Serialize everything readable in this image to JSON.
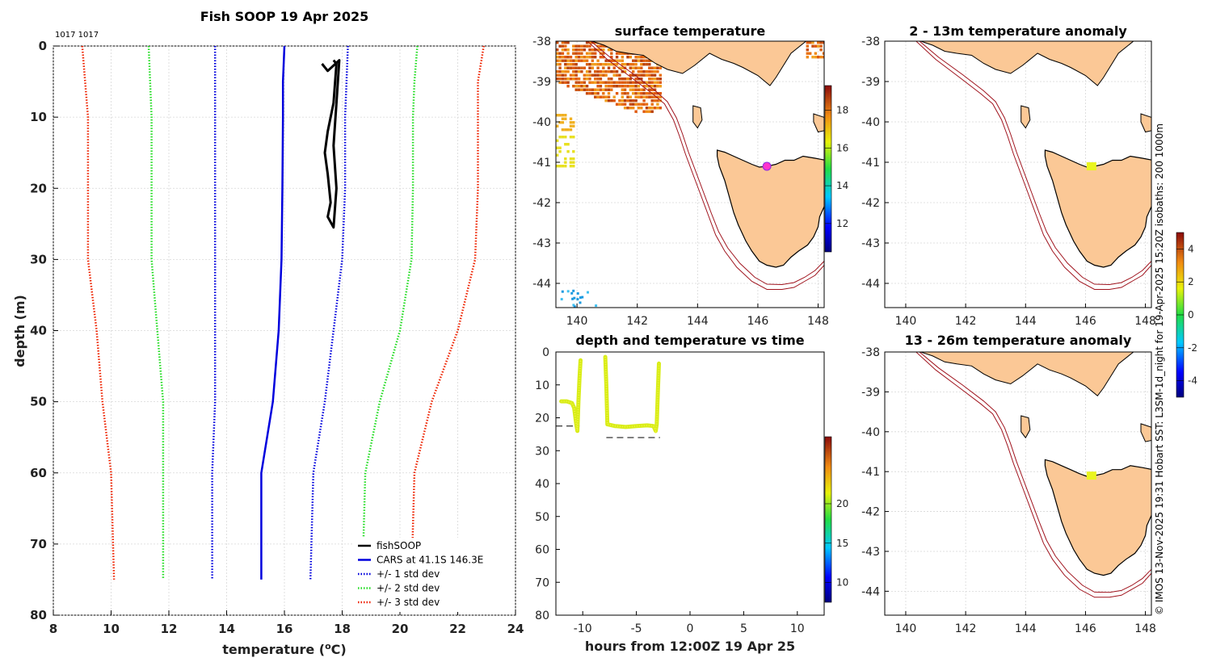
{
  "figure_title": "Fish SOOP 19 Apr 2025",
  "cast_ids": "1017 1017",
  "side_note": "© IMOS 13-Nov-2025 19:31 Hobart SST: L3SM-1d_night for 19-Apr-2025 15:20Z isobaths: 200  1000m",
  "colors": {
    "fishsoop": "#000000",
    "cars": "#0000dd",
    "std1": "#0000dd",
    "std2": "#22dd22",
    "std3": "#ee2200",
    "land": "#fbc896",
    "coast": "#000000",
    "isobath": "#a0141e",
    "marker_pink": "#ff33cc",
    "marker_yellow": "#eaf51f"
  },
  "chart_data": [
    {
      "id": "profile",
      "type": "line",
      "title": "Fish SOOP 19 Apr 2025",
      "xlabel": "temperature (",
      "xlabel_sup": "o",
      "xlabel_end": "C)",
      "ylabel": "depth (m)",
      "xlim": [
        8,
        24
      ],
      "ylim": [
        80,
        0
      ],
      "xticks": [
        8,
        10,
        12,
        14,
        16,
        18,
        20,
        22,
        24
      ],
      "yticks": [
        0,
        10,
        20,
        30,
        40,
        50,
        60,
        70,
        80
      ],
      "grid": true,
      "legend_position": "bottom-right",
      "series": [
        {
          "name": "fishSOOP",
          "style": "solid",
          "color": "#000000",
          "points": [
            [
              17.7,
              2.0
            ],
            [
              17.8,
              2.5
            ],
            [
              17.7,
              8.0
            ],
            [
              17.5,
              12.0
            ],
            [
              17.4,
              15.0
            ],
            [
              17.5,
              18.0
            ],
            [
              17.6,
              22.0
            ],
            [
              17.5,
              24.0
            ],
            [
              17.7,
              25.5
            ],
            [
              17.8,
              20.0
            ],
            [
              17.7,
              14.0
            ],
            [
              17.8,
              8.0
            ],
            [
              17.9,
              2.0
            ],
            [
              17.5,
              3.5
            ],
            [
              17.3,
              2.5
            ]
          ]
        },
        {
          "name": "CARS at 41.1S 146.3E",
          "style": "solid",
          "color": "#0000dd",
          "points": [
            [
              16.0,
              0
            ],
            [
              15.95,
              5
            ],
            [
              15.95,
              10
            ],
            [
              15.93,
              20
            ],
            [
              15.9,
              30
            ],
            [
              15.8,
              40
            ],
            [
              15.6,
              50
            ],
            [
              15.2,
              60
            ],
            [
              15.2,
              70
            ],
            [
              15.2,
              75
            ]
          ]
        },
        {
          "name": "+/- 1 std dev",
          "style": "dotted",
          "color": "#0000dd",
          "points": [
            [
              13.6,
              0
            ],
            [
              13.6,
              10
            ],
            [
              13.6,
              20
            ],
            [
              13.6,
              30
            ],
            [
              13.6,
              40
            ],
            [
              13.6,
              50
            ],
            [
              13.5,
              60
            ],
            [
              13.5,
              75
            ]
          ]
        },
        {
          "name": "+/- 1 std dev upper",
          "legend": false,
          "style": "dotted",
          "color": "#0000dd",
          "points": [
            [
              18.2,
              0
            ],
            [
              18.1,
              10
            ],
            [
              18.1,
              20
            ],
            [
              18.0,
              30
            ],
            [
              17.7,
              40
            ],
            [
              17.4,
              50
            ],
            [
              17.0,
              60
            ],
            [
              16.9,
              75
            ]
          ]
        },
        {
          "name": "+/- 2 std dev",
          "style": "dotted",
          "color": "#22dd22",
          "points": [
            [
              11.3,
              0
            ],
            [
              11.4,
              10
            ],
            [
              11.4,
              20
            ],
            [
              11.4,
              30
            ],
            [
              11.6,
              40
            ],
            [
              11.8,
              50
            ],
            [
              11.8,
              60
            ],
            [
              11.8,
              75
            ]
          ]
        },
        {
          "name": "+/- 2 std dev upper",
          "legend": false,
          "style": "dotted",
          "color": "#22dd22",
          "points": [
            [
              20.6,
              0
            ],
            [
              20.5,
              5
            ],
            [
              20.45,
              10
            ],
            [
              20.45,
              20
            ],
            [
              20.4,
              30
            ],
            [
              20.0,
              40
            ],
            [
              19.3,
              50
            ],
            [
              18.8,
              60
            ],
            [
              18.7,
              75
            ]
          ]
        },
        {
          "name": "+/- 3 std dev",
          "style": "dotted",
          "color": "#ee2200",
          "points": [
            [
              9.0,
              0
            ],
            [
              9.2,
              10
            ],
            [
              9.2,
              20
            ],
            [
              9.2,
              30
            ],
            [
              9.5,
              40
            ],
            [
              9.7,
              50
            ],
            [
              10.0,
              60
            ],
            [
              10.1,
              75
            ]
          ]
        },
        {
          "name": "+/- 3 std dev upper",
          "legend": false,
          "style": "dotted",
          "color": "#ee2200",
          "points": [
            [
              22.9,
              0
            ],
            [
              22.7,
              5
            ],
            [
              22.7,
              20
            ],
            [
              22.6,
              30
            ],
            [
              22.0,
              40
            ],
            [
              21.1,
              50
            ],
            [
              20.5,
              60
            ],
            [
              20.4,
              75
            ]
          ]
        }
      ]
    },
    {
      "id": "surface_map",
      "type": "heatmap",
      "title": "surface temperature",
      "lonlim": [
        139.3,
        148.2
      ],
      "latlim": [
        -44.6,
        -38
      ],
      "xticks": [
        140,
        142,
        144,
        146,
        148
      ],
      "yticks": [
        -38,
        -39,
        -40,
        -41,
        -42,
        -43,
        -44
      ],
      "colorbar": {
        "ticks": [
          12,
          14,
          16,
          18
        ],
        "range": [
          10.5,
          19.3
        ]
      },
      "marker": {
        "lon": 146.3,
        "lat": -41.1
      }
    },
    {
      "id": "time_series",
      "type": "scatter",
      "title": "depth and temperature vs time",
      "xlabel": "hours from 12:00Z 19 Apr 25",
      "xlim": [
        -12.5,
        12.5
      ],
      "ylim": [
        80,
        0
      ],
      "xticks": [
        -10,
        -5,
        0,
        5,
        10
      ],
      "yticks": [
        0,
        10,
        20,
        30,
        40,
        50,
        60,
        70,
        80
      ],
      "colorbar": {
        "ticks": [
          10,
          15,
          20
        ],
        "range": [
          7.5,
          28.5
        ]
      },
      "bottom_depth_segments": [
        {
          "x": [
            -12.5,
            -10.3
          ],
          "depth": 22.5
        },
        {
          "x": [
            -7.8,
            -2.8
          ],
          "depth": 26.0
        }
      ],
      "casts": [
        {
          "points": [
            [
              -12.0,
              15.0
            ],
            [
              -11.5,
              15.0
            ],
            [
              -11.0,
              15.5
            ],
            [
              -10.8,
              17.0
            ],
            [
              -10.6,
              22.0
            ],
            [
              -10.5,
              24.0
            ],
            [
              -10.4,
              15.0
            ],
            [
              -10.3,
              8.0
            ],
            [
              -10.2,
              2.5
            ]
          ]
        },
        {
          "points": [
            [
              -7.9,
              1.5
            ],
            [
              -7.8,
              10.0
            ],
            [
              -7.7,
              22.0
            ],
            [
              -7.0,
              22.5
            ],
            [
              -6.0,
              22.8
            ],
            [
              -5.0,
              22.5
            ],
            [
              -4.0,
              22.3
            ],
            [
              -3.4,
              22.5
            ],
            [
              -3.2,
              24.0
            ],
            [
              -3.1,
              22.0
            ],
            [
              -3.0,
              12.0
            ],
            [
              -2.9,
              3.5
            ]
          ]
        }
      ]
    },
    {
      "id": "anomaly_top",
      "type": "heatmap",
      "title": "2 - 13m temperature anomaly",
      "lonlim": [
        139.3,
        148.2
      ],
      "latlim": [
        -44.6,
        -38
      ],
      "xticks": [
        140,
        142,
        144,
        146,
        148
      ],
      "yticks": [
        -38,
        -39,
        -40,
        -41,
        -42,
        -43,
        -44
      ],
      "marker": {
        "lon": 146.2,
        "lat": -41.1
      }
    },
    {
      "id": "anomaly_bottom",
      "type": "heatmap",
      "title": "13 - 26m temperature anomaly",
      "lonlim": [
        139.3,
        148.2
      ],
      "latlim": [
        -44.6,
        -38
      ],
      "xticks": [
        140,
        142,
        144,
        146,
        148
      ],
      "yticks": [
        -38,
        -39,
        -40,
        -41,
        -42,
        -43,
        -44
      ],
      "marker": {
        "lon": 146.2,
        "lat": -41.1
      },
      "colorbar": {
        "ticks": [
          -4,
          -2,
          0,
          2,
          4
        ],
        "range": [
          -5,
          5
        ]
      }
    }
  ]
}
